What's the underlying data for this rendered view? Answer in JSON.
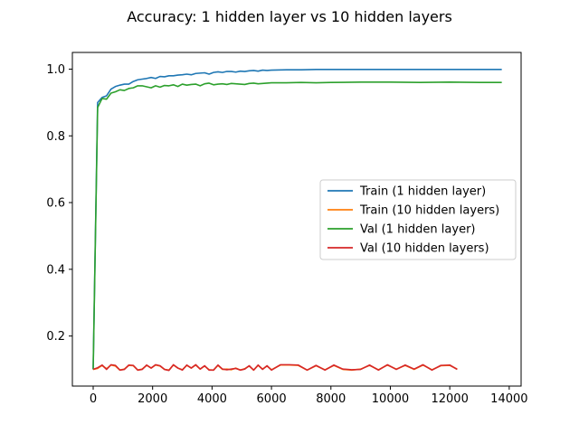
{
  "chart_data": {
    "type": "line",
    "title": "Accuracy: 1 hidden layer vs 10 hidden layers",
    "xlabel": "",
    "ylabel": "",
    "xlim": [
      -700,
      14400
    ],
    "ylim": [
      0.05,
      1.05
    ],
    "xticks": [
      0,
      2000,
      4000,
      6000,
      8000,
      10000,
      12000,
      14000
    ],
    "xtick_labels": [
      "0",
      "2000",
      "4000",
      "6000",
      "8000",
      "10000",
      "12000",
      "14000"
    ],
    "yticks": [
      0.2,
      0.4,
      0.6,
      0.8,
      1.0
    ],
    "ytick_labels": [
      "0.2",
      "0.4",
      "0.6",
      "0.8",
      "1.0"
    ],
    "grid": false,
    "legend_position": "center-right",
    "series": [
      {
        "name": "Train (1 hidden layer)",
        "color": "#1f77b4",
        "x": [
          0,
          150,
          300,
          450,
          600,
          750,
          900,
          1050,
          1200,
          1350,
          1500,
          1650,
          1800,
          1950,
          2100,
          2250,
          2400,
          2550,
          2700,
          2850,
          3000,
          3150,
          3300,
          3450,
          3600,
          3750,
          3900,
          4050,
          4200,
          4350,
          4500,
          4650,
          4800,
          4950,
          5100,
          5250,
          5400,
          5550,
          5700,
          5850,
          6000,
          6500,
          7000,
          7500,
          8000,
          9000,
          10000,
          11000,
          12000,
          13000,
          13750
        ],
        "y": [
          0.1,
          0.9,
          0.915,
          0.92,
          0.94,
          0.948,
          0.952,
          0.955,
          0.955,
          0.963,
          0.968,
          0.97,
          0.972,
          0.975,
          0.972,
          0.978,
          0.977,
          0.98,
          0.98,
          0.982,
          0.983,
          0.985,
          0.983,
          0.987,
          0.988,
          0.989,
          0.985,
          0.99,
          0.992,
          0.99,
          0.993,
          0.993,
          0.991,
          0.994,
          0.993,
          0.995,
          0.996,
          0.994,
          0.997,
          0.996,
          0.997,
          0.998,
          0.998,
          0.999,
          0.999,
          0.999,
          0.999,
          0.999,
          0.999,
          0.999,
          0.999
        ]
      },
      {
        "name": "Train (10 hidden layers)",
        "color": "#ff7f0e",
        "x": [
          0,
          150,
          300,
          450,
          600,
          750,
          900,
          1050,
          1200,
          1350,
          1500,
          1650,
          1800,
          1950,
          2100,
          2250,
          2400,
          2550,
          2700,
          2850,
          3000,
          3150,
          3300,
          3450,
          3600,
          3750,
          3900,
          4050,
          4200,
          4350,
          4500,
          4650,
          4800,
          4950,
          5100,
          5250,
          5400,
          5550,
          5700,
          5850,
          6000,
          6300,
          6600,
          6900,
          7200,
          7500,
          7800,
          8100,
          8400,
          8700,
          9000,
          9300,
          9600,
          9900,
          10200,
          10500,
          10800,
          11100,
          11400,
          11700,
          12000,
          12250
        ],
        "y": [
          0.1,
          0.103,
          0.112,
          0.102,
          0.113,
          0.11,
          0.098,
          0.101,
          0.112,
          0.111,
          0.098,
          0.101,
          0.112,
          0.104,
          0.113,
          0.11,
          0.1,
          0.098,
          0.113,
          0.104,
          0.099,
          0.112,
          0.104,
          0.113,
          0.101,
          0.11,
          0.099,
          0.098,
          0.112,
          0.1,
          0.101,
          0.099,
          0.104,
          0.098,
          0.102,
          0.11,
          0.098,
          0.112,
          0.101,
          0.11,
          0.099,
          0.113,
          0.113,
          0.112,
          0.098,
          0.111,
          0.099,
          0.112,
          0.1,
          0.098,
          0.101,
          0.112,
          0.099,
          0.113,
          0.101,
          0.112,
          0.1,
          0.113,
          0.099,
          0.111,
          0.112,
          0.101
        ]
      },
      {
        "name": "Val (1 hidden layer)",
        "color": "#2ca02c",
        "x": [
          0,
          150,
          300,
          450,
          600,
          750,
          900,
          1050,
          1200,
          1350,
          1500,
          1650,
          1800,
          1950,
          2100,
          2250,
          2400,
          2550,
          2700,
          2850,
          3000,
          3150,
          3300,
          3450,
          3600,
          3750,
          3900,
          4050,
          4200,
          4350,
          4500,
          4650,
          4800,
          4950,
          5100,
          5250,
          5400,
          5550,
          5700,
          5850,
          6000,
          6500,
          7000,
          7500,
          8000,
          9000,
          10000,
          11000,
          12000,
          13000,
          13750
        ],
        "y": [
          0.1,
          0.885,
          0.912,
          0.91,
          0.928,
          0.932,
          0.938,
          0.936,
          0.942,
          0.944,
          0.95,
          0.95,
          0.947,
          0.944,
          0.95,
          0.946,
          0.951,
          0.95,
          0.953,
          0.948,
          0.955,
          0.952,
          0.954,
          0.955,
          0.95,
          0.956,
          0.958,
          0.953,
          0.955,
          0.956,
          0.954,
          0.957,
          0.956,
          0.955,
          0.954,
          0.957,
          0.958,
          0.956,
          0.957,
          0.958,
          0.959,
          0.959,
          0.96,
          0.959,
          0.96,
          0.961,
          0.961,
          0.96,
          0.961,
          0.96,
          0.96
        ]
      },
      {
        "name": "Val (10 hidden layers)",
        "color": "#d62728",
        "x": [
          0,
          150,
          300,
          450,
          600,
          750,
          900,
          1050,
          1200,
          1350,
          1500,
          1650,
          1800,
          1950,
          2100,
          2250,
          2400,
          2550,
          2700,
          2850,
          3000,
          3150,
          3300,
          3450,
          3600,
          3750,
          3900,
          4050,
          4200,
          4350,
          4500,
          4650,
          4800,
          4950,
          5100,
          5250,
          5400,
          5550,
          5700,
          5850,
          6000,
          6300,
          6600,
          6900,
          7200,
          7500,
          7800,
          8100,
          8400,
          8700,
          9000,
          9300,
          9600,
          9900,
          10200,
          10500,
          10800,
          11100,
          11400,
          11700,
          12000,
          12250
        ],
        "y": [
          0.1,
          0.105,
          0.113,
          0.1,
          0.114,
          0.112,
          0.098,
          0.1,
          0.113,
          0.112,
          0.098,
          0.1,
          0.113,
          0.104,
          0.114,
          0.111,
          0.1,
          0.097,
          0.114,
          0.104,
          0.098,
          0.113,
          0.104,
          0.114,
          0.101,
          0.111,
          0.098,
          0.098,
          0.113,
          0.101,
          0.099,
          0.101,
          0.103,
          0.098,
          0.101,
          0.111,
          0.098,
          0.113,
          0.1,
          0.111,
          0.098,
          0.114,
          0.114,
          0.113,
          0.098,
          0.112,
          0.098,
          0.113,
          0.101,
          0.099,
          0.1,
          0.113,
          0.098,
          0.114,
          0.1,
          0.113,
          0.101,
          0.114,
          0.098,
          0.112,
          0.113,
          0.1
        ]
      }
    ]
  }
}
